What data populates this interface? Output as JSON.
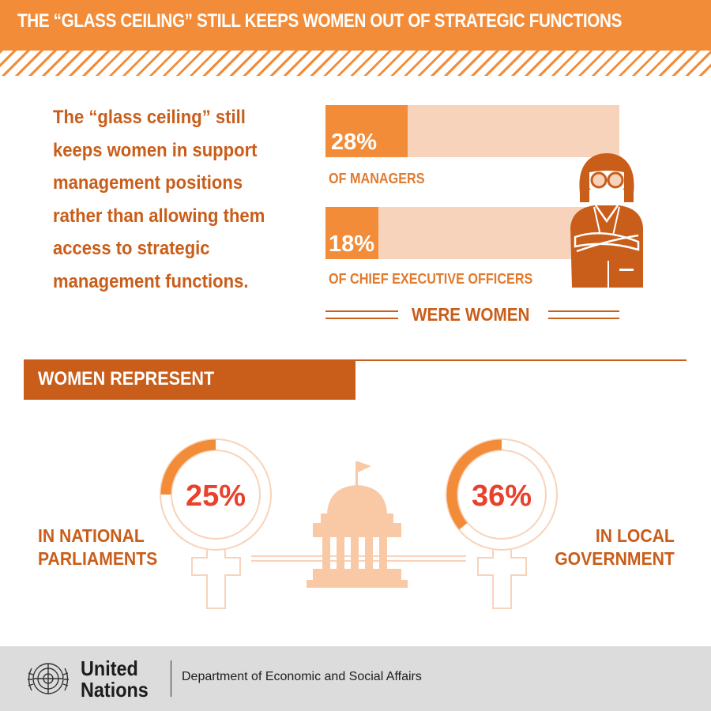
{
  "banner": {
    "title": "THE “GLASS CEILING” STILL KEEPS WOMEN OUT OF STRATEGIC FUNCTIONS"
  },
  "intro": {
    "text": "The “glass ceiling” still keeps women in support management positions rather than allowing them access to strategic management functions."
  },
  "chart_data": [
    {
      "type": "bar",
      "categories": [
        "OF MANAGERS",
        "OF CHIEF EXECUTIVE OFFICERS"
      ],
      "values": [
        28,
        18
      ],
      "value_labels": [
        "28%",
        "18%"
      ],
      "caption": "WERE WOMEN",
      "ylim": [
        0,
        100
      ]
    },
    {
      "type": "pie",
      "section_title": "WOMEN REPRESENT",
      "items": [
        {
          "label_line1": "IN NATIONAL",
          "label_line2": "PARLIAMENTS",
          "value": 25,
          "value_label": "25%"
        },
        {
          "label_line1": "IN LOCAL",
          "label_line2": "GOVERNMENT",
          "value": 36,
          "value_label": "36%"
        }
      ]
    }
  ],
  "colors": {
    "orange": "#f28c38",
    "dark_orange": "#c95d1a",
    "light_peach": "#f8d3bb",
    "red": "#e8412c"
  },
  "icons": [
    "woman-icon",
    "government-building-icon",
    "female-symbol-icon",
    "un-emblem-icon"
  ],
  "footer": {
    "org_line1": "United",
    "org_line2": "Nations",
    "department": "Department of Economic and Social Affairs"
  }
}
